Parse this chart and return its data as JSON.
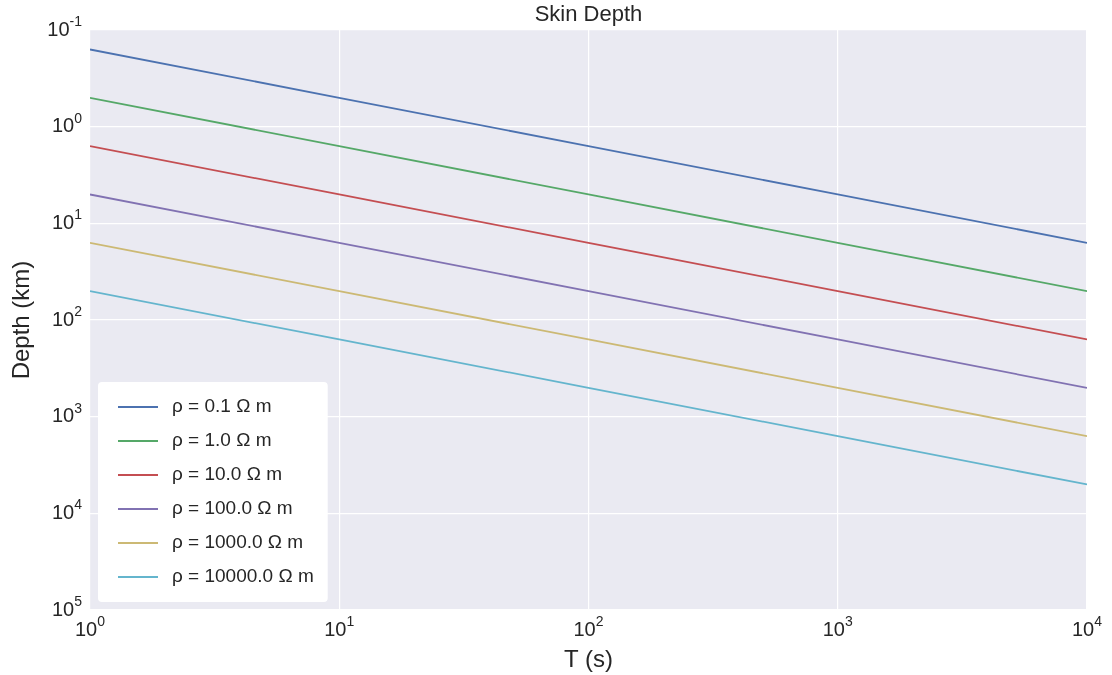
{
  "chart_data": {
    "type": "line",
    "title": "Skin Depth",
    "xlabel": "T (s)",
    "ylabel": "Depth (km)",
    "x": [
      1,
      10,
      100,
      1000,
      10000
    ],
    "series": [
      {
        "name": "ρ = 0.1 Ω m",
        "color": "#4c72b0",
        "values": [
          0.159,
          0.503,
          1.59,
          5.03,
          15.9
        ]
      },
      {
        "name": "ρ = 1.0 Ω m",
        "color": "#55a868",
        "values": [
          0.503,
          1.59,
          5.03,
          15.9,
          50.3
        ]
      },
      {
        "name": "ρ = 10.0 Ω m",
        "color": "#c44e52",
        "values": [
          1.59,
          5.03,
          15.9,
          50.3,
          159
        ]
      },
      {
        "name": "ρ = 100.0 Ω m",
        "color": "#8172b2",
        "values": [
          5.03,
          15.9,
          50.3,
          159,
          503
        ]
      },
      {
        "name": "ρ = 1000.0 Ω m",
        "color": "#ccb974",
        "values": [
          15.9,
          50.3,
          159,
          503,
          1590
        ]
      },
      {
        "name": "ρ = 10000.0 Ω m",
        "color": "#64b5cd",
        "values": [
          50.3,
          159,
          503,
          1590,
          5030
        ]
      }
    ],
    "log": "xy",
    "xlim": [
      1,
      10000
    ],
    "ylim": [
      100000,
      0.1
    ],
    "xticks": [
      {
        "value": 1,
        "label": "10$^{0}$"
      },
      {
        "value": 10,
        "label": "10$^{1}$"
      },
      {
        "value": 100,
        "label": "10$^{2}$"
      },
      {
        "value": 1000,
        "label": "10$^{3}$"
      },
      {
        "value": 10000,
        "label": "10$^{4}$"
      }
    ],
    "yticks": [
      {
        "value": 0.1,
        "label": "10$^{-1}$"
      },
      {
        "value": 1,
        "label": "10$^{0}$"
      },
      {
        "value": 10,
        "label": "10$^{1}$"
      },
      {
        "value": 100,
        "label": "10$^{2}$"
      },
      {
        "value": 1000,
        "label": "10$^{3}$"
      },
      {
        "value": 10000,
        "label": "10$^{4}$"
      },
      {
        "value": 100000,
        "label": "10$^{5}$"
      }
    ],
    "grid": true,
    "legend": "bottom left",
    "marker": "none",
    "line_style": "solid"
  }
}
